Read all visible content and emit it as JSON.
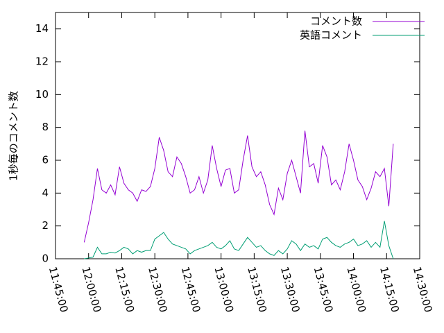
{
  "chart_data": {
    "type": "line",
    "ylabel": "1秒毎のコメント数",
    "x": [
      "11:58:00",
      "12:00:00",
      "12:02:00",
      "12:04:00",
      "12:06:00",
      "12:08:00",
      "12:10:00",
      "12:12:00",
      "12:14:00",
      "12:16:00",
      "12:18:00",
      "12:20:00",
      "12:22:00",
      "12:24:00",
      "12:26:00",
      "12:28:00",
      "12:30:00",
      "12:32:00",
      "12:34:00",
      "12:36:00",
      "12:38:00",
      "12:40:00",
      "12:42:00",
      "12:44:00",
      "12:46:00",
      "12:48:00",
      "12:50:00",
      "12:52:00",
      "12:54:00",
      "12:56:00",
      "12:58:00",
      "13:00:00",
      "13:02:00",
      "13:04:00",
      "13:06:00",
      "13:08:00",
      "13:10:00",
      "13:12:00",
      "13:14:00",
      "13:16:00",
      "13:18:00",
      "13:20:00",
      "13:22:00",
      "13:24:00",
      "13:26:00",
      "13:28:00",
      "13:30:00",
      "13:32:00",
      "13:34:00",
      "13:36:00",
      "13:38:00",
      "13:40:00",
      "13:42:00",
      "13:44:00",
      "13:46:00",
      "13:48:00",
      "13:50:00",
      "13:52:00",
      "13:54:00",
      "13:56:00",
      "13:58:00",
      "14:00:00",
      "14:02:00",
      "14:04:00",
      "14:06:00",
      "14:08:00",
      "14:10:00",
      "14:12:00",
      "14:14:00",
      "14:16:00",
      "14:18:00"
    ],
    "series": [
      {
        "name": "コメント数",
        "color": "#9400d3",
        "values": [
          1.0,
          2.2,
          3.6,
          5.5,
          4.2,
          4.0,
          4.5,
          3.9,
          5.6,
          4.6,
          4.2,
          4.0,
          3.5,
          4.2,
          4.1,
          4.4,
          5.5,
          7.4,
          6.6,
          5.3,
          5.0,
          6.2,
          5.8,
          5.0,
          4.0,
          4.2,
          5.0,
          4.0,
          4.8,
          6.9,
          5.5,
          4.4,
          5.4,
          5.5,
          4.0,
          4.2,
          6.0,
          7.5,
          5.6,
          5.0,
          5.3,
          4.5,
          3.3,
          2.7,
          4.3,
          3.6,
          5.2,
          6.0,
          5.0,
          4.0,
          7.8,
          5.6,
          5.8,
          4.6,
          6.9,
          6.2,
          4.5,
          4.8,
          4.2,
          5.3,
          7.0,
          6.0,
          4.8,
          4.4,
          3.6,
          4.3,
          5.3,
          5.0,
          5.5,
          3.2,
          7.0
        ]
      },
      {
        "name": "英語コメント",
        "color": "#009e73",
        "values": [
          0,
          0.05,
          0.1,
          0.7,
          0.3,
          0.3,
          0.4,
          0.35,
          0.5,
          0.7,
          0.6,
          0.3,
          0.5,
          0.4,
          0.5,
          0.5,
          1.2,
          1.4,
          1.6,
          1.2,
          0.9,
          0.8,
          0.7,
          0.6,
          0.3,
          0.5,
          0.6,
          0.7,
          0.8,
          1.0,
          0.7,
          0.6,
          0.8,
          1.1,
          0.6,
          0.5,
          0.9,
          1.3,
          1.0,
          0.7,
          0.8,
          0.5,
          0.3,
          0.2,
          0.5,
          0.3,
          0.6,
          1.1,
          0.9,
          0.5,
          0.9,
          0.7,
          0.8,
          0.6,
          1.2,
          1.3,
          1.0,
          0.8,
          0.7,
          0.9,
          1.0,
          1.2,
          0.8,
          0.9,
          1.1,
          0.7,
          1.0,
          0.7,
          2.3,
          0.8,
          0.0
        ]
      }
    ],
    "xlim": [
      "11:45:00",
      "14:30:00"
    ],
    "xticks": [
      "11:45:00",
      "12:00:00",
      "12:15:00",
      "12:30:00",
      "12:45:00",
      "13:00:00",
      "13:15:00",
      "13:30:00",
      "13:45:00",
      "14:00:00",
      "14:15:00",
      "14:30:00"
    ],
    "ylim": [
      0,
      15
    ],
    "yticks": [
      0,
      2,
      4,
      6,
      8,
      10,
      12,
      14
    ],
    "legend": "top-right"
  }
}
